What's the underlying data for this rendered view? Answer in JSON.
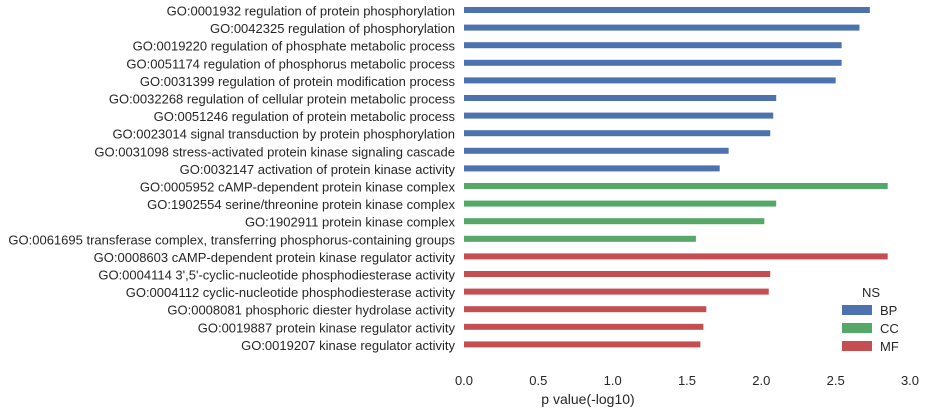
{
  "chart_data": {
    "type": "bar",
    "orientation": "horizontal",
    "xlabel": "p value(-log10)",
    "ylabel": "",
    "xlim": [
      0,
      3.0
    ],
    "xticks": [
      "0.0",
      "0.5",
      "1.0",
      "1.5",
      "2.0",
      "2.5",
      "3.0"
    ],
    "grid": false,
    "legend": {
      "title": "NS",
      "placement": "bottom-right"
    },
    "series": [
      {
        "name": "BP",
        "color": "#4c72b0",
        "categories": [
          "GO:0001932 regulation of protein phosphorylation",
          "GO:0042325 regulation of phosphorylation",
          "GO:0019220 regulation of phosphate metabolic process",
          "GO:0051174 regulation of phosphorus metabolic process",
          "GO:0031399 regulation of protein modification process",
          "GO:0032268 regulation of cellular protein metabolic process",
          "GO:0051246 regulation of protein metabolic process",
          "GO:0023014 signal transduction by protein phosphorylation",
          "GO:0031098 stress-activated protein kinase signaling cascade",
          "GO:0032147 activation of protein kinase activity"
        ],
        "values": [
          2.73,
          2.66,
          2.54,
          2.54,
          2.5,
          2.1,
          2.08,
          2.06,
          1.78,
          1.72
        ]
      },
      {
        "name": "CC",
        "color": "#55a868",
        "categories": [
          "GO:0005952 cAMP-dependent protein kinase complex",
          "GO:1902554 serine/threonine protein kinase complex",
          "GO:1902911 protein kinase complex",
          "GO:0061695 transferase complex, transferring phosphorus-containing groups"
        ],
        "values": [
          2.85,
          2.1,
          2.02,
          1.56
        ]
      },
      {
        "name": "MF",
        "color": "#c44e52",
        "categories": [
          "GO:0008603 cAMP-dependent protein kinase regulator activity",
          "GO:0004114 3',5'-cyclic-nucleotide phosphodiesterase activity",
          "GO:0004112 cyclic-nucleotide phosphodiesterase activity",
          "GO:0008081 phosphoric diester hydrolase activity",
          "GO:0019887 protein kinase regulator activity",
          "GO:0019207 kinase regulator activity"
        ],
        "values": [
          2.85,
          2.06,
          2.05,
          1.63,
          1.61,
          1.59
        ]
      }
    ]
  }
}
